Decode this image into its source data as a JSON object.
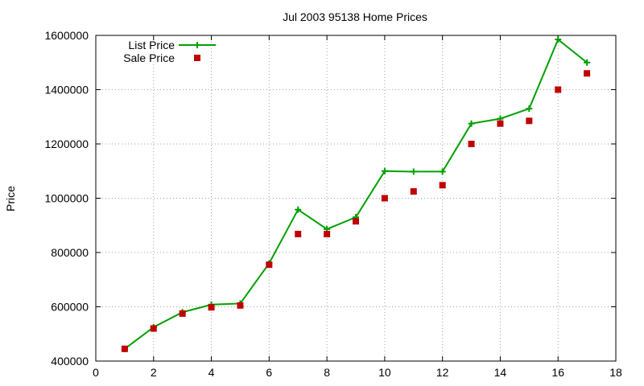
{
  "chart_data": {
    "type": "line",
    "title": "Jul 2003 95138 Home Prices",
    "xlabel": "",
    "ylabel": "Price",
    "xlim": [
      0,
      18
    ],
    "ylim": [
      400000,
      1600000
    ],
    "xticks": [
      "0",
      "2",
      "4",
      "6",
      "8",
      "10",
      "12",
      "14",
      "16",
      "18"
    ],
    "yticks": [
      "400000",
      "600000",
      "800000",
      "1000000",
      "1200000",
      "1400000",
      "1600000"
    ],
    "grid": true,
    "legend_position": "top-left",
    "series": [
      {
        "name": "List Price",
        "style": "line-cross",
        "color": "#00a000",
        "x": [
          1,
          2,
          3,
          4,
          5,
          6,
          7,
          8,
          9,
          10,
          11,
          12,
          13,
          14,
          15,
          16,
          17
        ],
        "y": [
          445000,
          525000,
          580000,
          608000,
          612000,
          760000,
          958000,
          886000,
          930000,
          1100000,
          1098000,
          1098000,
          1275000,
          1293000,
          1330000,
          1585000,
          1500000
        ]
      },
      {
        "name": "Sale Price",
        "style": "square",
        "color": "#c00000",
        "x": [
          1,
          2,
          3,
          4,
          5,
          6,
          7,
          8,
          9,
          10,
          11,
          12,
          13,
          14,
          15,
          16,
          17
        ],
        "y": [
          445000,
          520000,
          575000,
          598000,
          605000,
          755000,
          868000,
          868000,
          915000,
          1000000,
          1025000,
          1048000,
          1200000,
          1275000,
          1285000,
          1400000,
          1460000
        ]
      }
    ]
  }
}
